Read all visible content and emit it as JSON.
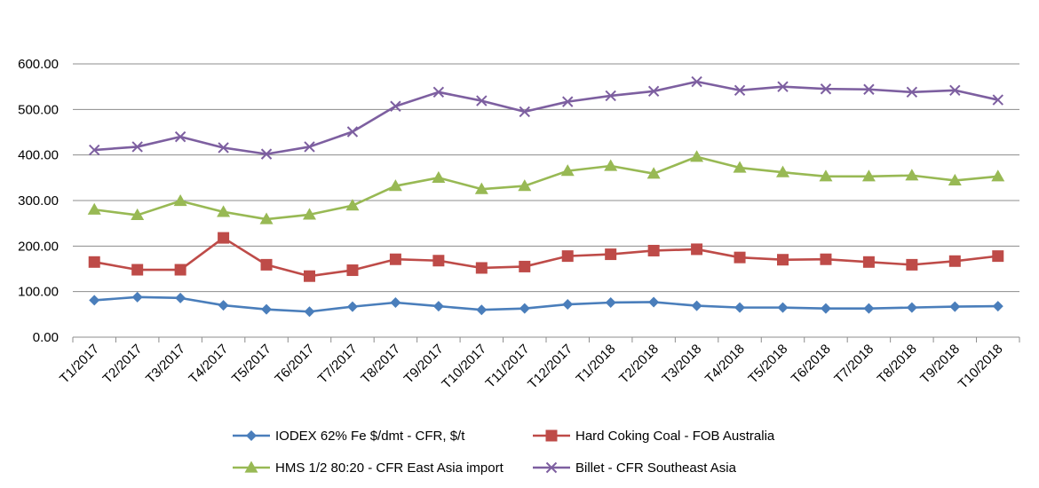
{
  "chart_data": {
    "type": "line",
    "title": "",
    "xlabel": "",
    "ylabel": "",
    "ylim": [
      0,
      600
    ],
    "yticks": [
      "0.00",
      "100.00",
      "200.00",
      "300.00",
      "400.00",
      "500.00",
      "600.00"
    ],
    "grid": true,
    "legend_position": "bottom",
    "categories": [
      "T1/2017",
      "T2/2017",
      "T3/2017",
      "T4/2017",
      "T5/2017",
      "T6/2017",
      "T7/2017",
      "T8/2017",
      "T9/2017",
      "T10/2017",
      "T11/2017",
      "T12/2017",
      "T1/2018",
      "T2/2018",
      "T3/2018",
      "T4/2018",
      "T5/2018",
      "T6/2018",
      "T7/2018",
      "T8/2018",
      "T9/2018",
      "T10/2018"
    ],
    "series": [
      {
        "name": "IODEX 62% Fe $/dmt - CFR, $/t",
        "color": "#4a7ebb",
        "marker": "diamond",
        "values": [
          81,
          88,
          86,
          70,
          61,
          56,
          67,
          76,
          68,
          60,
          63,
          72,
          76,
          77,
          69,
          65,
          65,
          63,
          63,
          65,
          67,
          68
        ]
      },
      {
        "name": "Hard Coking Coal - FOB Australia",
        "color": "#be4b48",
        "marker": "square",
        "values": [
          165,
          148,
          148,
          218,
          159,
          134,
          147,
          171,
          168,
          152,
          155,
          178,
          182,
          190,
          193,
          175,
          170,
          171,
          165,
          159,
          167,
          178
        ]
      },
      {
        "name": "HMS 1/2 80:20 - CFR East Asia import",
        "color": "#98b954",
        "marker": "triangle",
        "values": [
          280,
          268,
          299,
          275,
          259,
          269,
          289,
          332,
          350,
          325,
          332,
          365,
          376,
          359,
          396,
          372,
          362,
          353,
          353,
          355,
          344,
          353
        ]
      },
      {
        "name": "Billet - CFR Southeast Asia",
        "color": "#7d5fa0",
        "marker": "x",
        "values": [
          411,
          418,
          440,
          416,
          402,
          418,
          451,
          507,
          538,
          519,
          495,
          517,
          530,
          540,
          561,
          542,
          550,
          545,
          544,
          538,
          542,
          521
        ]
      }
    ]
  }
}
